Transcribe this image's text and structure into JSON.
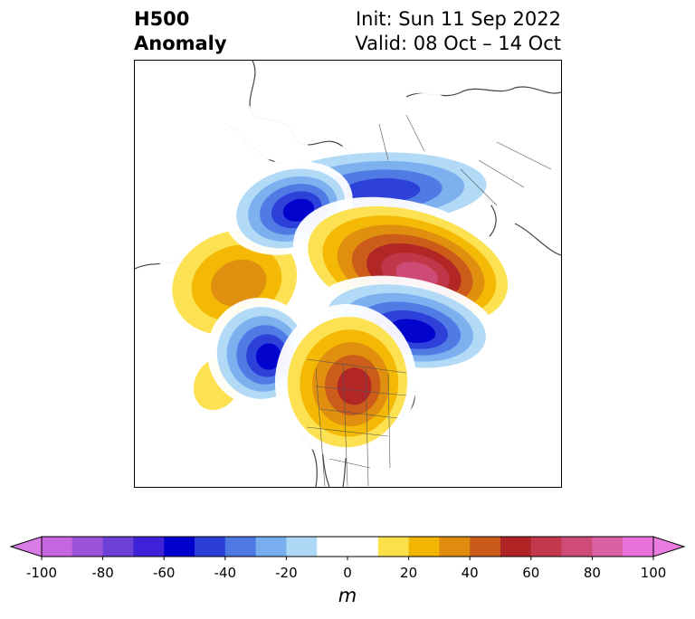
{
  "title": {
    "left_line1": "H500",
    "left_line2": "Anomaly",
    "init": "Init: Sun 11 Sep 2022",
    "valid": "Valid: 08 Oct – 14 Oct"
  },
  "colorbar": {
    "unit": "m",
    "ticks": [
      "-100",
      "-80",
      "-60",
      "-40",
      "-20",
      "0",
      "20",
      "40",
      "60",
      "80",
      "100"
    ],
    "bins": [
      {
        "from": -100,
        "to": -90,
        "color": "#c565e0"
      },
      {
        "from": -90,
        "to": -80,
        "color": "#9a52d9"
      },
      {
        "from": -80,
        "to": -70,
        "color": "#6c3fd9"
      },
      {
        "from": -70,
        "to": -60,
        "color": "#3d22d8"
      },
      {
        "from": -60,
        "to": -50,
        "color": "#0000cc"
      },
      {
        "from": -50,
        "to": -40,
        "color": "#2b3ed8"
      },
      {
        "from": -40,
        "to": -30,
        "color": "#4f78e3"
      },
      {
        "from": -30,
        "to": -20,
        "color": "#79aeee"
      },
      {
        "from": -20,
        "to": -10,
        "color": "#aed8f6"
      },
      {
        "from": -10,
        "to": 10,
        "color": "#ffffff"
      },
      {
        "from": 10,
        "to": 20,
        "color": "#fce04a"
      },
      {
        "from": 20,
        "to": 30,
        "color": "#f2b600"
      },
      {
        "from": 30,
        "to": 40,
        "color": "#df8c0f"
      },
      {
        "from": 40,
        "to": 50,
        "color": "#c95a1a"
      },
      {
        "from": 50,
        "to": 60,
        "color": "#b02426"
      },
      {
        "from": 60,
        "to": 70,
        "color": "#c2384c"
      },
      {
        "from": 70,
        "to": 80,
        "color": "#cf4c78"
      },
      {
        "from": 80,
        "to": 90,
        "color": "#db60a4"
      },
      {
        "from": 90,
        "to": 100,
        "color": "#e972d9"
      }
    ],
    "extend_low_color": "#d97ce6",
    "extend_high_color": "#ea7be0"
  },
  "anomalies": [
    {
      "name": "blue-hudson-bay",
      "peak": -60,
      "levels": [
        -10,
        -20,
        -30,
        -40,
        -50,
        -60
      ]
    },
    {
      "name": "blue-east-siberia-arctic",
      "peak": -50,
      "levels": [
        -10,
        -20,
        -30,
        -40,
        -50
      ]
    },
    {
      "name": "blue-scandinavia",
      "peak": -60,
      "levels": [
        -10,
        -20,
        -30,
        -40,
        -50,
        -60
      ]
    },
    {
      "name": "blue-western-europe-atlantic",
      "peak": -60,
      "levels": [
        -10,
        -20,
        -30,
        -40,
        -50,
        -60
      ]
    },
    {
      "name": "red-russia",
      "peak": 80,
      "levels": [
        10,
        20,
        30,
        40,
        50,
        60,
        70,
        80
      ]
    },
    {
      "name": "red-great-lakes",
      "peak": 60,
      "levels": [
        10,
        20,
        30,
        40,
        50,
        60
      ]
    },
    {
      "name": "yellow-greenland-atlantic",
      "peak": 40,
      "levels": [
        10,
        20,
        30,
        40
      ]
    },
    {
      "name": "yellow-north-africa",
      "peak": 20,
      "levels": [
        10,
        20
      ]
    },
    {
      "name": "yellow-siberia",
      "peak": 10,
      "levels": [
        10
      ]
    },
    {
      "name": "yellow-alaska-pacific",
      "peak": 10,
      "levels": [
        10
      ]
    }
  ]
}
